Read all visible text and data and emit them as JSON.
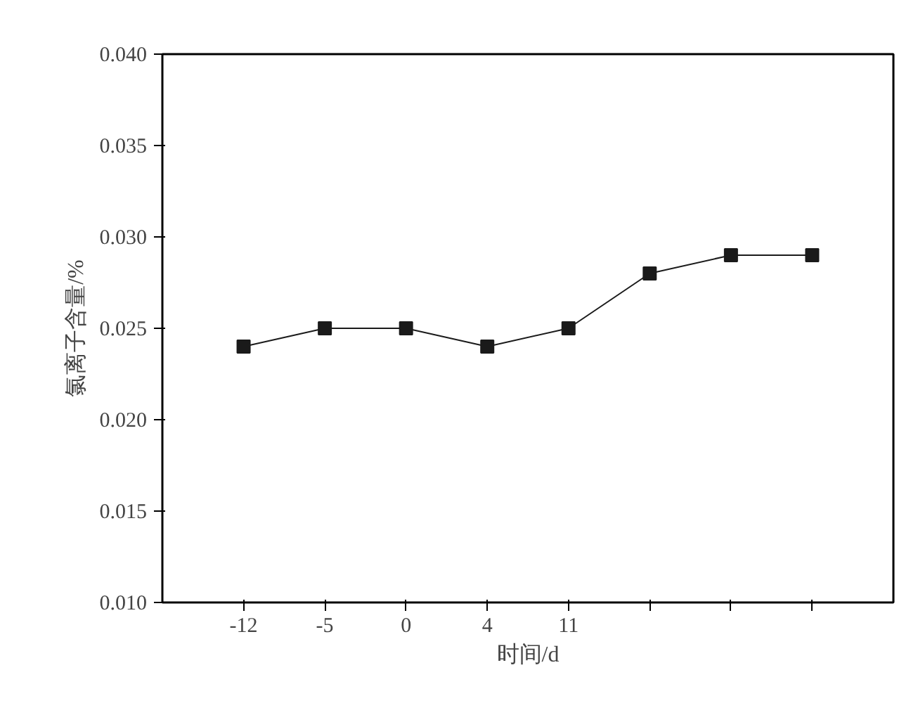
{
  "chart_data": {
    "type": "line",
    "xlabel": "时间/d",
    "ylabel": "氯离子含量/%",
    "categories": [
      "-12",
      "-5",
      "0",
      "4",
      "11",
      null,
      null,
      null
    ],
    "series": [
      {
        "color": "#1a1a1a",
        "values": [
          0.024,
          0.025,
          0.025,
          0.024,
          0.025,
          0.028,
          0.029,
          0.029
        ]
      }
    ],
    "ylim": [
      0.01,
      0.04
    ],
    "yticks": [
      {
        "value": 0.01,
        "label": "0.010"
      },
      {
        "value": 0.015,
        "label": "0.015"
      },
      {
        "value": 0.02,
        "label": "0.020"
      },
      {
        "value": 0.025,
        "label": "0.025"
      },
      {
        "value": 0.03,
        "label": "0.030"
      },
      {
        "value": 0.035,
        "label": "0.035"
      },
      {
        "value": 0.04,
        "label": "0.040"
      }
    ],
    "marker": "square",
    "line_style": "solid",
    "grid": false
  }
}
